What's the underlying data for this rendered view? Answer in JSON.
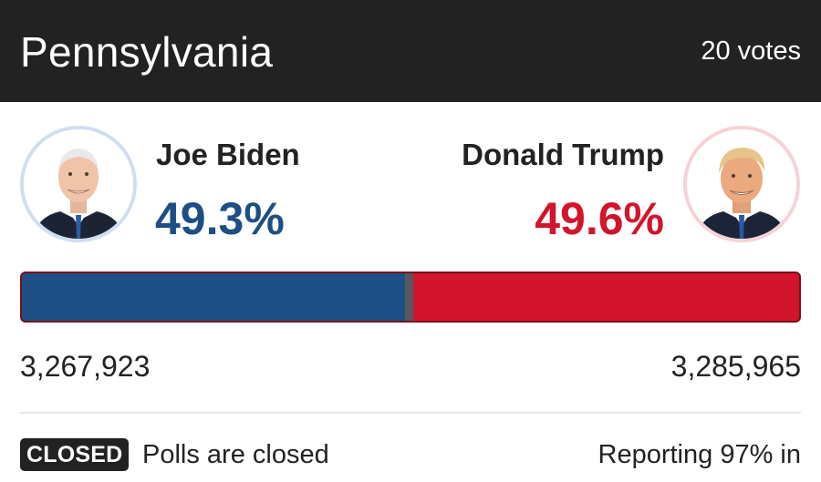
{
  "header": {
    "state": "Pennsylvania",
    "electoral_votes": "20 votes"
  },
  "candidates": [
    {
      "name": "Joe Biden",
      "percent": "49.3%",
      "percent_value": 49.3,
      "votes": "3,267,923",
      "color": "#1d4f85",
      "photo_icon": "candidate-portrait"
    },
    {
      "name": "Donald Trump",
      "percent": "49.6%",
      "percent_value": 49.6,
      "votes": "3,285,965",
      "color": "#d2142c",
      "photo_icon": "candidate-portrait"
    }
  ],
  "bar": {
    "dem_share": 0.493,
    "other_share": 0.011,
    "rep_share": 0.496,
    "other_color": "#55595f"
  },
  "footer": {
    "badge": "CLOSED",
    "status": "Polls are closed",
    "reporting": "Reporting 97% in"
  }
}
